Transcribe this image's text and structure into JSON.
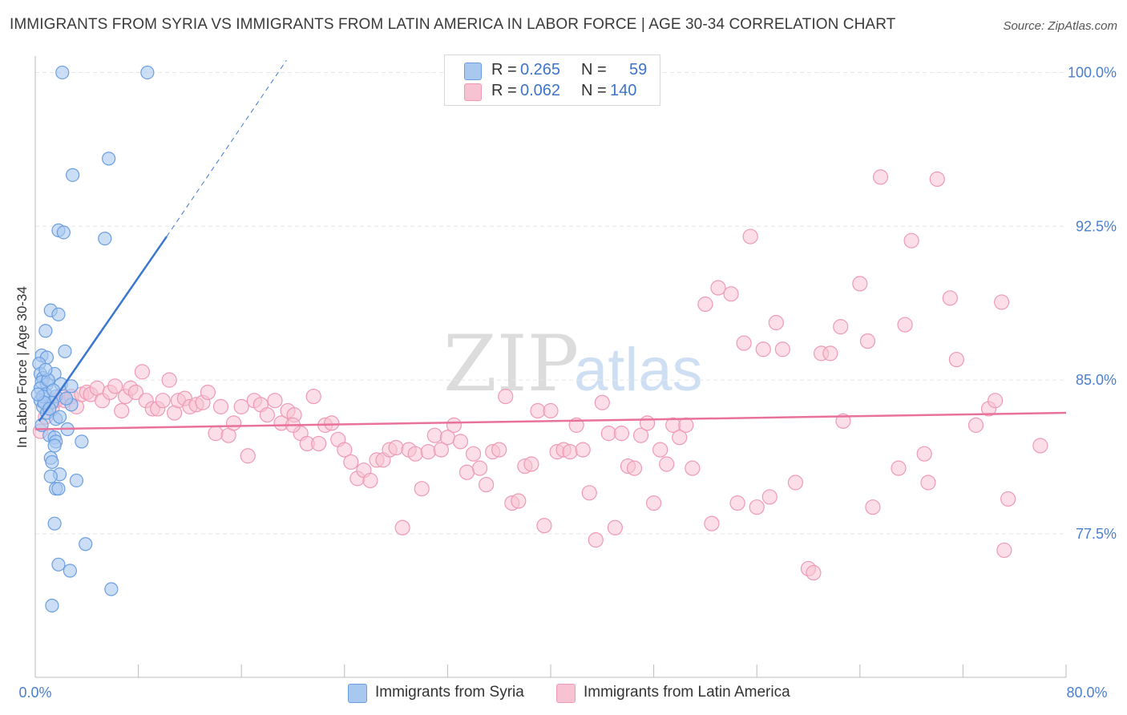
{
  "title": "IMMIGRANTS FROM SYRIA VS IMMIGRANTS FROM LATIN AMERICA IN LABOR FORCE | AGE 30-34 CORRELATION CHART",
  "source": "Source: ZipAtlas.com",
  "watermark": {
    "zip": "ZIP",
    "atlas": "atlas"
  },
  "legend": {
    "syria": {
      "r_label": "R =",
      "r_value": "0.265",
      "n_label": "N =",
      "n_value": "59"
    },
    "latam": {
      "r_label": "R =",
      "r_value": "0.062",
      "n_label": "N =",
      "n_value": "140"
    }
  },
  "colors": {
    "syria_fill": "#a9c8f0",
    "syria_stroke": "#6a9ee0",
    "syria_line": "#3a78d0",
    "latam_fill": "#f7c3d3",
    "latam_stroke": "#ee9ab4",
    "latam_line": "#e8729a"
  },
  "chart_data": {
    "type": "scatter",
    "title": "IMMIGRANTS FROM SYRIA VS IMMIGRANTS FROM LATIN AMERICA IN LABOR FORCE | AGE 30-34 CORRELATION CHART",
    "xlabel": "",
    "ylabel": "In Labor Force | Age 30-34",
    "xlim": [
      0,
      80
    ],
    "ylim": [
      70.5,
      100.8
    ],
    "x_tick_labels": [
      "0.0%",
      "80.0%"
    ],
    "y_ticks": [
      77.5,
      85.0,
      92.5,
      100.0
    ],
    "y_tick_labels": [
      "77.5%",
      "85.0%",
      "92.5%",
      "100.0%"
    ],
    "grid": true,
    "series": [
      {
        "name": "Immigrants from Syria",
        "trend": {
          "x": [
            0.3,
            10.2
          ],
          "y": [
            83.0,
            92.0
          ],
          "dashed_x": [
            10.2,
            19.5
          ],
          "dashed_y": [
            92.0,
            100.6
          ]
        },
        "points": [
          [
            2.1,
            100.0
          ],
          [
            8.7,
            100.0
          ],
          [
            5.7,
            95.8
          ],
          [
            2.9,
            95.0
          ],
          [
            1.8,
            92.3
          ],
          [
            2.2,
            92.2
          ],
          [
            5.4,
            91.9
          ],
          [
            1.2,
            88.4
          ],
          [
            1.8,
            88.2
          ],
          [
            0.8,
            87.4
          ],
          [
            2.3,
            86.4
          ],
          [
            0.5,
            86.2
          ],
          [
            0.9,
            86.1
          ],
          [
            0.3,
            85.8
          ],
          [
            0.4,
            85.3
          ],
          [
            1.5,
            85.3
          ],
          [
            0.6,
            85.1
          ],
          [
            0.5,
            84.9
          ],
          [
            0.9,
            84.8
          ],
          [
            2.0,
            84.8
          ],
          [
            2.8,
            84.7
          ],
          [
            0.4,
            84.6
          ],
          [
            0.8,
            84.3
          ],
          [
            1.6,
            84.2
          ],
          [
            0.4,
            84.0
          ],
          [
            1.3,
            83.9
          ],
          [
            2.8,
            83.8
          ],
          [
            0.6,
            83.7
          ],
          [
            0.9,
            83.4
          ],
          [
            1.6,
            83.1
          ],
          [
            0.5,
            82.8
          ],
          [
            2.5,
            82.6
          ],
          [
            1.1,
            82.3
          ],
          [
            1.5,
            82.2
          ],
          [
            1.6,
            82.0
          ],
          [
            3.6,
            82.0
          ],
          [
            1.5,
            81.8
          ],
          [
            1.2,
            81.2
          ],
          [
            1.3,
            81.0
          ],
          [
            1.9,
            80.4
          ],
          [
            1.2,
            80.3
          ],
          [
            3.2,
            80.1
          ],
          [
            1.6,
            79.7
          ],
          [
            1.8,
            79.7
          ],
          [
            1.5,
            78.0
          ],
          [
            3.9,
            77.0
          ],
          [
            1.8,
            76.0
          ],
          [
            2.7,
            75.7
          ],
          [
            5.9,
            74.8
          ],
          [
            1.3,
            74.0
          ],
          [
            0.6,
            84.2
          ],
          [
            1.0,
            85.0
          ],
          [
            0.7,
            83.9
          ],
          [
            1.4,
            84.5
          ],
          [
            0.2,
            84.3
          ],
          [
            2.4,
            84.1
          ],
          [
            1.1,
            83.6
          ],
          [
            0.8,
            85.5
          ],
          [
            1.9,
            83.2
          ]
        ]
      },
      {
        "name": "Immigrants from Latin America",
        "trend": {
          "x": [
            0,
            80
          ],
          "y": [
            82.6,
            83.4
          ]
        },
        "points": [
          [
            0.4,
            82.5
          ],
          [
            0.8,
            83.2
          ],
          [
            1.3,
            83.6
          ],
          [
            1.6,
            84.0
          ],
          [
            2.0,
            84.2
          ],
          [
            2.3,
            84.0
          ],
          [
            2.8,
            84.2
          ],
          [
            3.2,
            83.7
          ],
          [
            3.6,
            84.3
          ],
          [
            4.0,
            84.4
          ],
          [
            4.3,
            84.3
          ],
          [
            4.8,
            84.6
          ],
          [
            5.2,
            84.0
          ],
          [
            5.8,
            84.4
          ],
          [
            6.2,
            84.7
          ],
          [
            6.7,
            83.5
          ],
          [
            7.0,
            84.2
          ],
          [
            7.4,
            84.6
          ],
          [
            7.8,
            84.4
          ],
          [
            8.3,
            85.4
          ],
          [
            8.6,
            84.0
          ],
          [
            9.1,
            83.6
          ],
          [
            9.5,
            83.6
          ],
          [
            9.9,
            84.0
          ],
          [
            10.4,
            85.0
          ],
          [
            10.8,
            83.4
          ],
          [
            11.1,
            84.0
          ],
          [
            11.6,
            84.1
          ],
          [
            12.0,
            83.7
          ],
          [
            12.5,
            83.8
          ],
          [
            13.0,
            83.9
          ],
          [
            13.4,
            84.4
          ],
          [
            14.0,
            82.4
          ],
          [
            14.4,
            83.7
          ],
          [
            15.0,
            82.3
          ],
          [
            15.4,
            82.9
          ],
          [
            16.0,
            83.7
          ],
          [
            16.5,
            81.3
          ],
          [
            17.0,
            84.0
          ],
          [
            17.5,
            83.8
          ],
          [
            18.0,
            83.3
          ],
          [
            18.6,
            84.0
          ],
          [
            19.1,
            82.9
          ],
          [
            19.6,
            83.5
          ],
          [
            20.1,
            83.3
          ],
          [
            20.6,
            82.4
          ],
          [
            21.1,
            81.9
          ],
          [
            21.6,
            84.2
          ],
          [
            22.0,
            81.9
          ],
          [
            22.5,
            82.8
          ],
          [
            23.0,
            82.9
          ],
          [
            23.5,
            82.1
          ],
          [
            24.0,
            81.6
          ],
          [
            24.5,
            81.0
          ],
          [
            25.0,
            80.2
          ],
          [
            25.5,
            80.6
          ],
          [
            26.0,
            80.1
          ],
          [
            26.5,
            81.1
          ],
          [
            27.0,
            81.1
          ],
          [
            27.5,
            81.6
          ],
          [
            28.0,
            81.7
          ],
          [
            28.5,
            77.8
          ],
          [
            29.0,
            81.6
          ],
          [
            29.5,
            81.4
          ],
          [
            30.0,
            79.7
          ],
          [
            30.5,
            81.5
          ],
          [
            31.0,
            82.3
          ],
          [
            31.5,
            81.6
          ],
          [
            32.0,
            82.2
          ],
          [
            32.5,
            82.8
          ],
          [
            33.0,
            82.0
          ],
          [
            33.5,
            80.5
          ],
          [
            34.0,
            81.4
          ],
          [
            34.5,
            80.7
          ],
          [
            35.0,
            79.9
          ],
          [
            35.5,
            81.5
          ],
          [
            36.0,
            81.6
          ],
          [
            36.5,
            84.2
          ],
          [
            37.0,
            79.0
          ],
          [
            37.5,
            79.1
          ],
          [
            38.0,
            80.8
          ],
          [
            38.5,
            80.9
          ],
          [
            39.0,
            83.5
          ],
          [
            39.5,
            77.9
          ],
          [
            40.0,
            83.5
          ],
          [
            40.5,
            81.5
          ],
          [
            41.0,
            81.6
          ],
          [
            41.5,
            81.5
          ],
          [
            42.0,
            82.8
          ],
          [
            42.5,
            81.6
          ],
          [
            43.0,
            79.5
          ],
          [
            43.5,
            77.2
          ],
          [
            44.0,
            83.9
          ],
          [
            44.5,
            82.4
          ],
          [
            45.0,
            77.8
          ],
          [
            45.5,
            82.4
          ],
          [
            46.0,
            80.8
          ],
          [
            46.5,
            80.7
          ],
          [
            47.0,
            82.3
          ],
          [
            47.5,
            82.9
          ],
          [
            48.0,
            79.0
          ],
          [
            48.5,
            81.6
          ],
          [
            49.0,
            80.9
          ],
          [
            49.5,
            82.8
          ],
          [
            50.0,
            82.2
          ],
          [
            50.5,
            82.8
          ],
          [
            51.0,
            80.7
          ],
          [
            52.0,
            88.7
          ],
          [
            52.5,
            78.0
          ],
          [
            53.0,
            89.5
          ],
          [
            54.0,
            89.2
          ],
          [
            54.5,
            79.0
          ],
          [
            55.0,
            86.8
          ],
          [
            55.5,
            92.0
          ],
          [
            56.0,
            78.8
          ],
          [
            56.5,
            86.5
          ],
          [
            57.0,
            79.3
          ],
          [
            57.5,
            87.8
          ],
          [
            58.0,
            86.5
          ],
          [
            59.0,
            80.0
          ],
          [
            60.0,
            75.8
          ],
          [
            60.4,
            75.6
          ],
          [
            61.0,
            86.3
          ],
          [
            61.7,
            86.3
          ],
          [
            62.5,
            87.6
          ],
          [
            62.7,
            83.0
          ],
          [
            64.0,
            89.7
          ],
          [
            64.6,
            86.9
          ],
          [
            65.0,
            78.8
          ],
          [
            65.6,
            94.9
          ],
          [
            67.0,
            80.7
          ],
          [
            67.5,
            87.7
          ],
          [
            68.0,
            91.8
          ],
          [
            69.0,
            81.4
          ],
          [
            69.3,
            80.0
          ],
          [
            70.0,
            94.8
          ],
          [
            71.0,
            89.0
          ],
          [
            71.5,
            86.0
          ],
          [
            73.0,
            82.8
          ],
          [
            74.0,
            83.6
          ],
          [
            74.5,
            84.0
          ],
          [
            75.0,
            88.8
          ],
          [
            75.5,
            79.2
          ],
          [
            78.0,
            81.8
          ],
          [
            75.2,
            76.7
          ],
          [
            20.0,
            82.8
          ]
        ]
      }
    ]
  },
  "bottom_legend": {
    "syria": "Immigrants from Syria",
    "latam": "Immigrants from Latin America"
  }
}
